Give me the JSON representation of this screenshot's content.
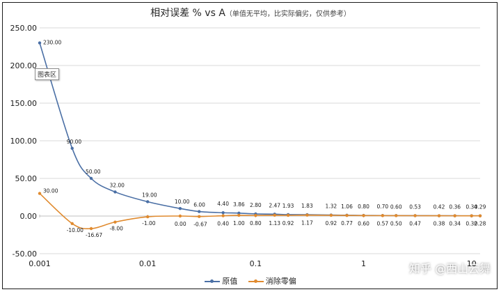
{
  "chart_data": {
    "type": "line",
    "title": "相对误差 % vs A",
    "subtitle": "（单值无平均，比实际偏劣，仅供参考）",
    "x_scale": "log",
    "xlim": [
      0.001,
      12
    ],
    "ylim": [
      -50,
      250
    ],
    "y_ticks": [
      "250.00",
      "200.00",
      "150.00",
      "100.00",
      "50.00",
      "0.00",
      "-50.00"
    ],
    "x_ticks": [
      "0.001",
      "0.01",
      "0.1",
      "1",
      "10"
    ],
    "grid": "horizontal",
    "legend": "bottom",
    "series": [
      {
        "name": "原值",
        "color": "#4a6fa5",
        "x": [
          0.001,
          0.002,
          0.003,
          0.005,
          0.01,
          0.02,
          0.03,
          0.05,
          0.07,
          0.1,
          0.15,
          0.2,
          0.3,
          0.5,
          0.7,
          1,
          1.5,
          2,
          3,
          5,
          7,
          10,
          12
        ],
        "values": [
          230.0,
          90.0,
          50.0,
          32.0,
          19.0,
          10.0,
          6.0,
          4.4,
          3.86,
          2.8,
          2.47,
          1.93,
          1.83,
          1.32,
          1.06,
          0.8,
          0.7,
          0.6,
          0.53,
          0.42,
          0.36,
          0.34,
          0.29
        ],
        "labels": [
          "230.00",
          "90.00",
          "50.00",
          "32.00",
          "19.00",
          "10.00",
          "6.00",
          "4.40",
          "3.86",
          "2.80",
          "2.47",
          "1.93",
          "1.83",
          "1.32",
          "1.06",
          "0.80",
          "0.70",
          "0.60",
          "0.53",
          "0.42",
          "0.36",
          "0.34",
          "0.29"
        ]
      },
      {
        "name": "消除零偏",
        "color": "#e08a2e",
        "x": [
          0.001,
          0.002,
          0.003,
          0.005,
          0.01,
          0.02,
          0.03,
          0.05,
          0.07,
          0.1,
          0.15,
          0.2,
          0.3,
          0.5,
          0.7,
          1,
          1.5,
          2,
          3,
          5,
          7,
          10,
          12
        ],
        "values": [
          30.0,
          -10.0,
          -16.67,
          -8.0,
          -1.0,
          0.0,
          -0.67,
          0.4,
          1.0,
          0.8,
          1.13,
          0.92,
          1.17,
          0.92,
          0.77,
          0.6,
          0.57,
          0.5,
          0.47,
          0.38,
          0.34,
          0.32,
          0.28
        ],
        "labels": [
          "30.00",
          "-10.00",
          "-16.67",
          "-8.00",
          "-1.00",
          "0.00",
          "-0.67",
          "0.40",
          "1.00",
          "0.80",
          "1.13",
          "0.92",
          "1.17",
          "0.92",
          "0.77",
          "0.60",
          "0.57",
          "0.50",
          "0.47",
          "0.38",
          "0.34",
          "0.32",
          "0.28"
        ]
      }
    ]
  },
  "tooltip": "图表区",
  "watermark": "知乎 @西山云舞"
}
